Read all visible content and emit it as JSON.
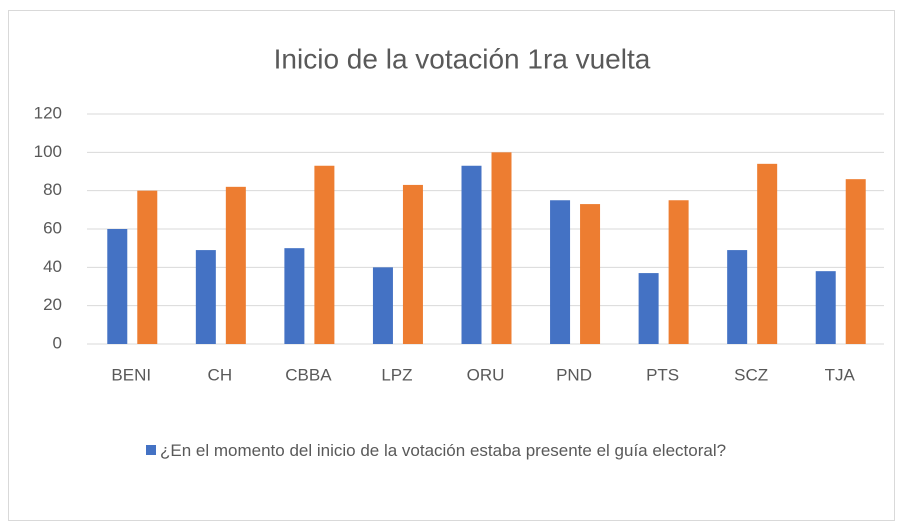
{
  "chart_data": {
    "type": "bar",
    "title": "Inicio de la votación 1ra vuelta",
    "categories": [
      "BENI",
      "CH",
      "CBBA",
      "LPZ",
      "ORU",
      "PND",
      "PTS",
      "SCZ",
      "TJA"
    ],
    "series": [
      {
        "name": "¿En el momento del inicio de la votación estaba presente el guía electoral?",
        "color": "#4472c4",
        "values": [
          60,
          49,
          50,
          40,
          93,
          75,
          37,
          49,
          38
        ]
      },
      {
        "color": "#ed7d31",
        "values": [
          80,
          82,
          93,
          83,
          100,
          73,
          75,
          94,
          86
        ]
      }
    ],
    "ylim": [
      0,
      120
    ],
    "yticks": [
      0,
      20,
      40,
      60,
      80,
      100,
      120
    ],
    "grid": true,
    "legend": "bottom"
  }
}
